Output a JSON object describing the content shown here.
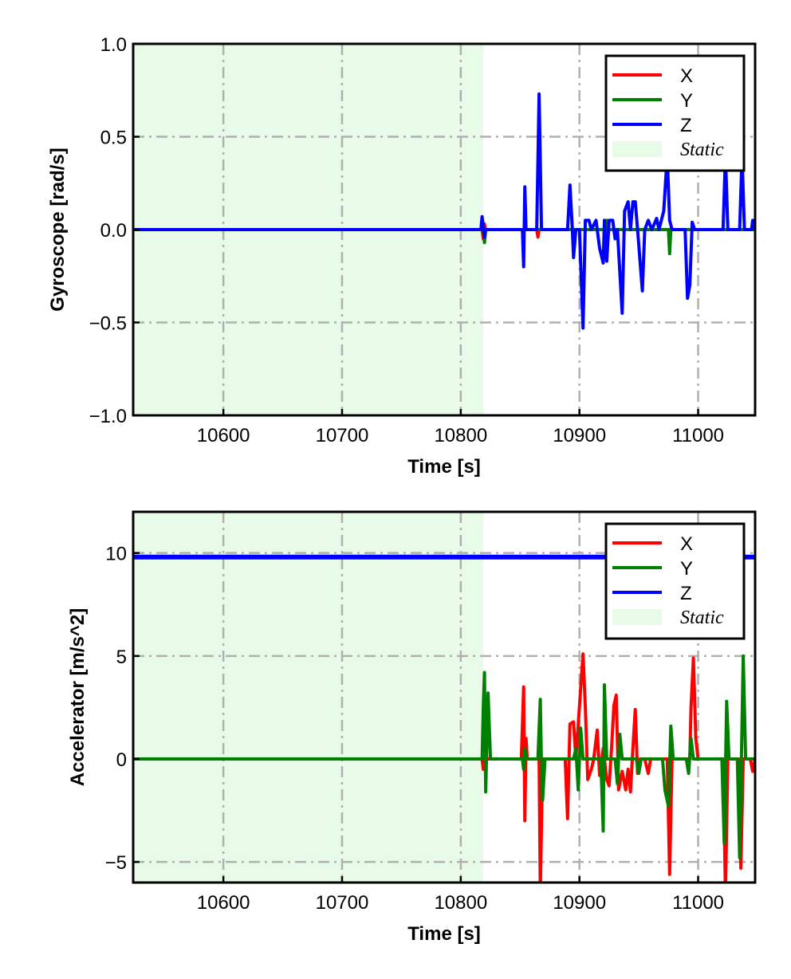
{
  "chart_data": [
    {
      "type": "line",
      "xlabel": "Time [s]",
      "ylabel": "Gyroscope [rad/s]",
      "xlim": [
        10524,
        11048
      ],
      "ylim": [
        -1.0,
        1.0
      ],
      "xticks": [
        10600,
        10700,
        10800,
        10900,
        11000
      ],
      "xtick_labels": [
        "10600",
        "10700",
        "10800",
        "10900",
        "11000"
      ],
      "yticks": [
        1.0,
        0.5,
        0.0,
        -0.5,
        -1.0
      ],
      "ytick_labels": [
        "1.0",
        "0.5",
        "0.0",
        "−0.5",
        "−1.0"
      ],
      "grid": true,
      "legend_position": "top-right",
      "static_region": {
        "x_start": 10524,
        "x_end": 10819,
        "label": "Static",
        "color": "#e8fbe8"
      },
      "series": [
        {
          "name": "X",
          "color": "#ff0000",
          "points": [
            [
              10524,
              0
            ],
            [
              10818,
              0
            ],
            [
              10819,
              -0.05
            ],
            [
              10820,
              0.03
            ],
            [
              10821,
              0
            ],
            [
              10864,
              0
            ],
            [
              10865,
              -0.04
            ],
            [
              10866,
              0
            ],
            [
              11048,
              0
            ]
          ]
        },
        {
          "name": "Y",
          "color": "#008000",
          "points": [
            [
              10524,
              0
            ],
            [
              10819,
              0
            ],
            [
              10820,
              -0.07
            ],
            [
              10821,
              0
            ],
            [
              10922,
              0
            ],
            [
              10923,
              0.05
            ],
            [
              10924,
              0
            ],
            [
              10975,
              0
            ],
            [
              10976,
              -0.13
            ],
            [
              10977,
              0
            ],
            [
              11048,
              0
            ]
          ]
        },
        {
          "name": "Z",
          "color": "#0000ff",
          "points": [
            [
              10524,
              0
            ],
            [
              10817,
              0
            ],
            [
              10818,
              0.07
            ],
            [
              10820,
              -0.04
            ],
            [
              10821,
              0
            ],
            [
              10852,
              0
            ],
            [
              10853,
              -0.2
            ],
            [
              10854,
              0.23
            ],
            [
              10855,
              0
            ],
            [
              10864,
              0
            ],
            [
              10866,
              0.73
            ],
            [
              10868,
              0
            ],
            [
              10890,
              0
            ],
            [
              10892,
              0.24
            ],
            [
              10894,
              0
            ],
            [
              10895,
              -0.15
            ],
            [
              10897,
              0
            ],
            [
              10900,
              0
            ],
            [
              10903,
              -0.53
            ],
            [
              10905,
              0.05
            ],
            [
              10908,
              0.05
            ],
            [
              10910,
              0
            ],
            [
              10914,
              0.05
            ],
            [
              10917,
              -0.1
            ],
            [
              10920,
              -0.18
            ],
            [
              10921,
              0.05
            ],
            [
              10923,
              -0.17
            ],
            [
              10925,
              0.05
            ],
            [
              10928,
              0.05
            ],
            [
              10930,
              -0.05
            ],
            [
              10932,
              0
            ],
            [
              10936,
              -0.45
            ],
            [
              10938,
              0.1
            ],
            [
              10941,
              0.15
            ],
            [
              10943,
              0
            ],
            [
              10945,
              0.15
            ],
            [
              10947,
              0.15
            ],
            [
              10949,
              0
            ],
            [
              10953,
              -0.33
            ],
            [
              10955,
              0
            ],
            [
              10958,
              0.05
            ],
            [
              10961,
              0
            ],
            [
              10965,
              0.06
            ],
            [
              10967,
              0
            ],
            [
              10971,
              0.1
            ],
            [
              10974,
              0.4
            ],
            [
              10976,
              0.05
            ],
            [
              10978,
              0
            ],
            [
              10989,
              0
            ],
            [
              10991,
              -0.37
            ],
            [
              10993,
              -0.3
            ],
            [
              10995,
              0.04
            ],
            [
              10997,
              0
            ],
            [
              11021,
              0
            ],
            [
              11023,
              0.4
            ],
            [
              11025,
              0
            ],
            [
              11035,
              0
            ],
            [
              11037,
              0.4
            ],
            [
              11039,
              0
            ],
            [
              11045,
              0
            ],
            [
              11046,
              0.05
            ],
            [
              11048,
              0
            ]
          ]
        }
      ]
    },
    {
      "type": "line",
      "xlabel": "Time [s]",
      "ylabel": "Accelerator [m/s^2]",
      "xlim": [
        10524,
        11048
      ],
      "ylim": [
        -6,
        12
      ],
      "xticks": [
        10600,
        10700,
        10800,
        10900,
        11000
      ],
      "xtick_labels": [
        "10600",
        "10700",
        "10800",
        "10900",
        "11000"
      ],
      "yticks": [
        10,
        5,
        0,
        -5
      ],
      "ytick_labels": [
        "10",
        "5",
        "0",
        "−5"
      ],
      "grid": true,
      "legend_position": "top-right",
      "static_region": {
        "x_start": 10524,
        "x_end": 10819,
        "label": "Static",
        "color": "#e8fbe8"
      },
      "series": [
        {
          "name": "X",
          "color": "#ff0000",
          "points": [
            [
              10524,
              0
            ],
            [
              10818,
              0
            ],
            [
              10819,
              -0.5
            ],
            [
              10821,
              0.5
            ],
            [
              10822,
              0
            ],
            [
              10851,
              0
            ],
            [
              10853,
              3.5
            ],
            [
              10854,
              -3.0
            ],
            [
              10855,
              1.0
            ],
            [
              10856,
              0
            ],
            [
              10866,
              0
            ],
            [
              10867,
              -6.5
            ],
            [
              10869,
              0
            ],
            [
              10888,
              0
            ],
            [
              10890,
              -2.9
            ],
            [
              10892,
              1.7
            ],
            [
              10895,
              1.8
            ],
            [
              10897,
              0
            ],
            [
              10903,
              5.1
            ],
            [
              10905,
              2.5
            ],
            [
              10907,
              -1.0
            ],
            [
              10910,
              -0.5
            ],
            [
              10912,
              0
            ],
            [
              10915,
              1.4
            ],
            [
              10917,
              -0.8
            ],
            [
              10920,
              0.5
            ],
            [
              10923,
              -1.0
            ],
            [
              10925,
              -1.3
            ],
            [
              10927,
              0.5
            ],
            [
              10929,
              2.6
            ],
            [
              10931,
              3.1
            ],
            [
              10933,
              -1.5
            ],
            [
              10936,
              -0.6
            ],
            [
              10939,
              -1.5
            ],
            [
              10941,
              -0.5
            ],
            [
              10943,
              -1.6
            ],
            [
              10945,
              0.5
            ],
            [
              10947,
              2.4
            ],
            [
              10949,
              -0.7
            ],
            [
              10951,
              0
            ],
            [
              10955,
              0
            ],
            [
              10958,
              -0.7
            ],
            [
              10960,
              0
            ],
            [
              10974,
              0
            ],
            [
              10976,
              -5.6
            ],
            [
              10978,
              0
            ],
            [
              10993,
              0
            ],
            [
              10994,
              2.5
            ],
            [
              10996,
              4.9
            ],
            [
              10998,
              1.0
            ],
            [
              11000,
              0
            ],
            [
              11021,
              0
            ],
            [
              11023,
              -6.5
            ],
            [
              11025,
              0
            ],
            [
              11034,
              0
            ],
            [
              11036,
              -5.3
            ],
            [
              11038,
              0
            ],
            [
              11044,
              0
            ],
            [
              11046,
              -0.6
            ],
            [
              11048,
              0
            ]
          ]
        },
        {
          "name": "Y",
          "color": "#008000",
          "points": [
            [
              10524,
              0
            ],
            [
              10818,
              0
            ],
            [
              10819,
              2.5
            ],
            [
              10820,
              4.2
            ],
            [
              10821,
              -1.6
            ],
            [
              10823,
              3.2
            ],
            [
              10825,
              0
            ],
            [
              10852,
              0
            ],
            [
              10853,
              -0.5
            ],
            [
              10854,
              0.5
            ],
            [
              10855,
              0
            ],
            [
              10865,
              0
            ],
            [
              10867,
              2.9
            ],
            [
              10868,
              -0.5
            ],
            [
              10869,
              -2.0
            ],
            [
              10871,
              0
            ],
            [
              10895,
              0
            ],
            [
              10897,
              0.5
            ],
            [
              10899,
              -1.5
            ],
            [
              10901,
              1.5
            ],
            [
              10903,
              0
            ],
            [
              10918,
              0
            ],
            [
              10920,
              -3.5
            ],
            [
              10921,
              3.6
            ],
            [
              10923,
              0
            ],
            [
              10930,
              0
            ],
            [
              10932,
              -1.2
            ],
            [
              10934,
              1.2
            ],
            [
              10936,
              0
            ],
            [
              10948,
              0
            ],
            [
              10950,
              -0.7
            ],
            [
              10952,
              0
            ],
            [
              10970,
              0
            ],
            [
              10972,
              -1.5
            ],
            [
              10975,
              -2.3
            ],
            [
              10977,
              1.6
            ],
            [
              10979,
              0
            ],
            [
              10990,
              0
            ],
            [
              10992,
              -0.7
            ],
            [
              10994,
              1.0
            ],
            [
              10996,
              0
            ],
            [
              11020,
              0
            ],
            [
              11022,
              -4.1
            ],
            [
              11024,
              2.8
            ],
            [
              11026,
              0
            ],
            [
              11033,
              0
            ],
            [
              11035,
              -4.8
            ],
            [
              11038,
              5.0
            ],
            [
              11040,
              0
            ],
            [
              11048,
              0
            ]
          ]
        },
        {
          "name": "Z",
          "color": "#0000ff",
          "points": [
            [
              10524,
              9.8
            ],
            [
              11048,
              9.8
            ]
          ]
        }
      ]
    }
  ]
}
